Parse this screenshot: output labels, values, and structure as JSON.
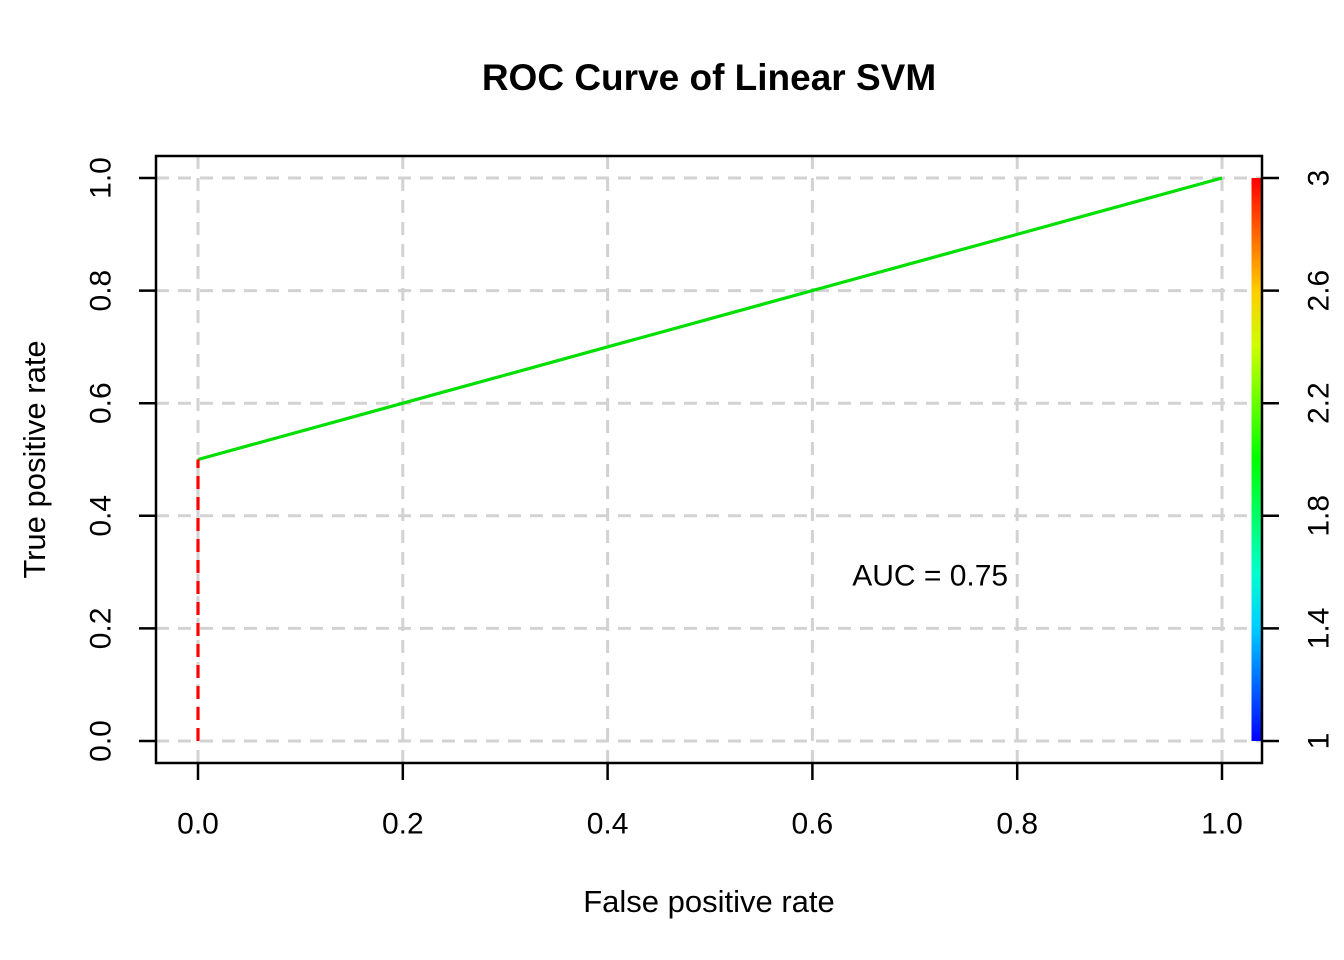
{
  "chart_data": {
    "type": "line",
    "title": "ROC Curve of Linear SVM",
    "xlabel": "False positive rate",
    "ylabel": "True positive rate",
    "xlim": [
      0,
      1
    ],
    "ylim": [
      0,
      1
    ],
    "x_ticks": [
      "0.0",
      "0.2",
      "0.4",
      "0.6",
      "0.8",
      "1.0"
    ],
    "y_ticks": [
      "0.0",
      "0.2",
      "0.4",
      "0.6",
      "0.8",
      "1.0"
    ],
    "grid": true,
    "grid_style": "dashed",
    "legend_position": "none",
    "annotation": {
      "text": "AUC = 0.75",
      "x": 0.715,
      "y": 0.295
    },
    "auc": 0.75,
    "series": [
      {
        "name": "roc-curve",
        "color": "#00DF00",
        "style": "solid",
        "points": [
          [
            0,
            0.5
          ],
          [
            1,
            1
          ]
        ]
      },
      {
        "name": "cutoff-reference",
        "color": "#FF0000",
        "style": "dashed",
        "points": [
          [
            0,
            0
          ],
          [
            0,
            0.5
          ]
        ]
      }
    ],
    "colorbar": {
      "min": 1,
      "max": 3,
      "tick_labels": [
        "1",
        "1.4",
        "1.8",
        "2.2",
        "2.6",
        "3"
      ],
      "tick_values": [
        1,
        1.4,
        1.8,
        2.2,
        2.6,
        3
      ],
      "gradient_top_to_bottom": [
        "#FF0000",
        "#FF6600",
        "#FFCC00",
        "#CCFF00",
        "#66FF00",
        "#00FF00",
        "#00FF66",
        "#00FFCC",
        "#00CCFF",
        "#0066FF",
        "#0000FF"
      ]
    },
    "colors": {
      "grid": "#D2D2D2",
      "axis": "#000000",
      "text": "#000000",
      "background": "#FFFFFF"
    }
  }
}
